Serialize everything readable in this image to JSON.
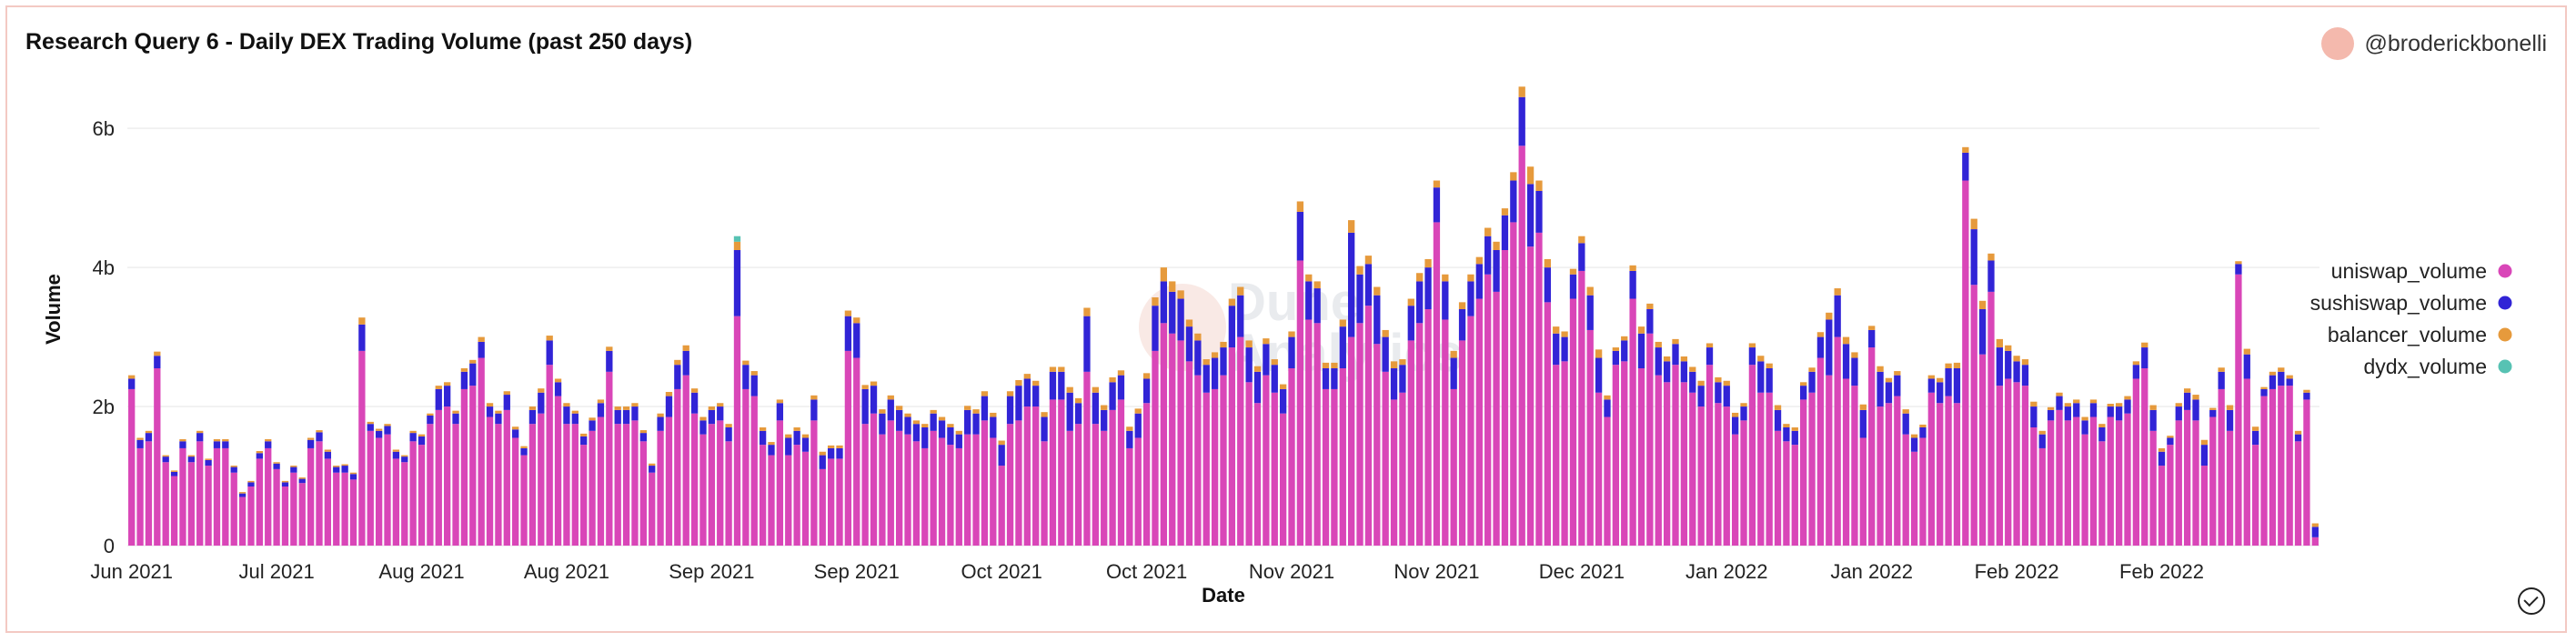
{
  "header": {
    "title": "Research Query 6 - Daily DEX Trading Volume (past 250 days)",
    "username": "@broderickbonelli"
  },
  "watermark_text": "Dune Analytics",
  "colors": {
    "uniswap": "#d946b8",
    "sushiswap": "#3124d6",
    "balancer": "#e69a3c",
    "dydx": "#57c2b3",
    "grid": "#eeeeee"
  },
  "chart_data": {
    "type": "bar",
    "stacked": true,
    "title": "Research Query 6 - Daily DEX Trading Volume (past 250 days)",
    "xlabel": "Date",
    "ylabel": "Volume",
    "ylim": [
      0,
      6800000000
    ],
    "y_ticks": [
      {
        "value": 0,
        "label": "0"
      },
      {
        "value": 2000000000,
        "label": "2b"
      },
      {
        "value": 4000000000,
        "label": "4b"
      },
      {
        "value": 6000000000,
        "label": "6b"
      }
    ],
    "x_ticks": [
      {
        "index": 0,
        "label": "Jun 2021"
      },
      {
        "index": 17,
        "label": "Jul 2021"
      },
      {
        "index": 34,
        "label": "Aug 2021"
      },
      {
        "index": 51,
        "label": "Aug 2021"
      },
      {
        "index": 68,
        "label": "Sep 2021"
      },
      {
        "index": 85,
        "label": "Sep 2021"
      },
      {
        "index": 102,
        "label": "Oct 2021"
      },
      {
        "index": 119,
        "label": "Oct 2021"
      },
      {
        "index": 136,
        "label": "Nov 2021"
      },
      {
        "index": 153,
        "label": "Nov 2021"
      },
      {
        "index": 170,
        "label": "Dec 2021"
      },
      {
        "index": 187,
        "label": "Jan 2022"
      },
      {
        "index": 204,
        "label": "Jan 2022"
      },
      {
        "index": 221,
        "label": "Feb 2022"
      },
      {
        "index": 238,
        "label": "Feb 2022"
      }
    ],
    "legend_position": "right",
    "series": [
      {
        "name": "uniswap_volume",
        "values": [
          2.25,
          1.4,
          1.5,
          2.55,
          1.2,
          1.0,
          1.4,
          1.2,
          1.5,
          1.15,
          1.4,
          1.4,
          1.05,
          0.7,
          0.85,
          1.25,
          1.4,
          1.1,
          0.85,
          1.05,
          0.9,
          1.4,
          1.5,
          1.25,
          1.05,
          1.05,
          0.95,
          2.8,
          1.65,
          1.55,
          1.6,
          1.25,
          1.2,
          1.5,
          1.45,
          1.75,
          1.95,
          2.0,
          1.75,
          2.25,
          2.3,
          2.7,
          1.85,
          1.75,
          1.95,
          1.55,
          1.3,
          1.75,
          1.9,
          2.6,
          2.15,
          1.75,
          1.75,
          1.45,
          1.65,
          1.85,
          2.5,
          1.75,
          1.75,
          1.8,
          1.5,
          1.05,
          1.65,
          1.85,
          2.25,
          2.45,
          1.9,
          1.6,
          1.75,
          1.8,
          1.5,
          3.3,
          2.25,
          2.15,
          1.45,
          1.3,
          1.8,
          1.3,
          1.45,
          1.35,
          1.8,
          1.1,
          1.25,
          1.25,
          2.8,
          2.7,
          1.75,
          1.9,
          1.6,
          1.8,
          1.65,
          1.6,
          1.5,
          1.4,
          1.65,
          1.55,
          1.45,
          1.4,
          1.6,
          1.6,
          1.8,
          1.55,
          1.15,
          1.75,
          1.8,
          2.0,
          2.0,
          1.5,
          2.1,
          2.1,
          1.65,
          1.75,
          2.5,
          1.75,
          1.65,
          1.95,
          2.1,
          1.4,
          1.55,
          2.05,
          2.8,
          3.2,
          3.05,
          2.95,
          2.65,
          2.45,
          2.2,
          2.25,
          2.45,
          2.85,
          3.0,
          2.35,
          2.05,
          2.45,
          2.2,
          1.9,
          2.55,
          4.1,
          3.25,
          3.2,
          2.25,
          2.25,
          2.55,
          3.0,
          3.2,
          3.45,
          2.9,
          2.5,
          2.1,
          2.2,
          2.95,
          3.2,
          3.4,
          4.65,
          3.25,
          2.25,
          2.95,
          3.3,
          3.55,
          3.9,
          3.65,
          4.25,
          4.65,
          5.75,
          4.3,
          4.5,
          3.5,
          2.6,
          2.65,
          3.55,
          3.95,
          3.1,
          2.2,
          1.85,
          2.6,
          2.65,
          3.55,
          2.55,
          3.05,
          2.45,
          2.35,
          2.6,
          2.35,
          2.2,
          2.0,
          2.6,
          2.05,
          2.0,
          1.6,
          1.8,
          2.6,
          2.2,
          2.2,
          1.65,
          1.5,
          1.45,
          2.1,
          2.2,
          2.7,
          2.45,
          3.0,
          2.4,
          2.3,
          1.55,
          2.85,
          2.0,
          2.05,
          2.15,
          1.6,
          1.35,
          1.55,
          2.2,
          2.05,
          2.15,
          2.05,
          5.25,
          3.75,
          2.75,
          3.65,
          2.3,
          2.4,
          2.35,
          2.3,
          1.7,
          1.4,
          1.8,
          1.95,
          1.8,
          1.85,
          1.6,
          1.85,
          1.5,
          1.85,
          1.8,
          1.9,
          2.4,
          2.55,
          1.65,
          1.15,
          1.45,
          1.8,
          1.95,
          1.8,
          1.15,
          1.85,
          2.25,
          1.65,
          3.9,
          2.4,
          1.45,
          2.15,
          2.25,
          2.3,
          2.3,
          1.5,
          2.1,
          0.12
        ]
      },
      {
        "name": "sushiswap_volume",
        "values": [
          0.15,
          0.12,
          0.12,
          0.18,
          0.08,
          0.06,
          0.1,
          0.08,
          0.12,
          0.08,
          0.1,
          0.1,
          0.08,
          0.05,
          0.06,
          0.08,
          0.1,
          0.08,
          0.06,
          0.08,
          0.06,
          0.12,
          0.13,
          0.1,
          0.08,
          0.1,
          0.08,
          0.38,
          0.1,
          0.1,
          0.12,
          0.1,
          0.08,
          0.12,
          0.12,
          0.12,
          0.3,
          0.3,
          0.15,
          0.25,
          0.32,
          0.23,
          0.15,
          0.15,
          0.22,
          0.12,
          0.1,
          0.2,
          0.3,
          0.35,
          0.2,
          0.25,
          0.15,
          0.12,
          0.15,
          0.2,
          0.3,
          0.2,
          0.2,
          0.2,
          0.12,
          0.1,
          0.2,
          0.3,
          0.35,
          0.35,
          0.3,
          0.2,
          0.2,
          0.2,
          0.2,
          0.95,
          0.35,
          0.3,
          0.2,
          0.15,
          0.25,
          0.25,
          0.2,
          0.2,
          0.3,
          0.2,
          0.15,
          0.15,
          0.5,
          0.5,
          0.5,
          0.4,
          0.3,
          0.3,
          0.3,
          0.25,
          0.25,
          0.3,
          0.25,
          0.25,
          0.25,
          0.2,
          0.35,
          0.3,
          0.35,
          0.3,
          0.3,
          0.4,
          0.5,
          0.4,
          0.3,
          0.35,
          0.4,
          0.4,
          0.55,
          0.3,
          0.8,
          0.45,
          0.3,
          0.4,
          0.35,
          0.25,
          0.35,
          0.35,
          0.65,
          0.6,
          0.6,
          0.6,
          0.5,
          0.5,
          0.4,
          0.45,
          0.4,
          0.6,
          0.6,
          0.5,
          0.45,
          0.45,
          0.4,
          0.35,
          0.45,
          0.7,
          0.55,
          0.5,
          0.3,
          0.3,
          0.6,
          1.5,
          0.7,
          0.6,
          0.7,
          0.5,
          0.45,
          0.4,
          0.5,
          0.6,
          0.6,
          0.5,
          0.55,
          0.45,
          0.45,
          0.5,
          0.5,
          0.55,
          0.6,
          0.5,
          0.6,
          0.7,
          0.9,
          0.6,
          0.5,
          0.45,
          0.35,
          0.35,
          0.4,
          0.5,
          0.5,
          0.25,
          0.2,
          0.3,
          0.4,
          0.5,
          0.35,
          0.4,
          0.3,
          0.3,
          0.3,
          0.3,
          0.3,
          0.25,
          0.3,
          0.3,
          0.25,
          0.2,
          0.25,
          0.45,
          0.35,
          0.3,
          0.2,
          0.2,
          0.2,
          0.3,
          0.3,
          0.8,
          0.6,
          0.5,
          0.4,
          0.4,
          0.25,
          0.5,
          0.3,
          0.3,
          0.3,
          0.2,
          0.15,
          0.2,
          0.3,
          0.4,
          0.5,
          0.4,
          0.8,
          0.65,
          0.45,
          0.55,
          0.4,
          0.3,
          0.3,
          0.3,
          0.2,
          0.15,
          0.2,
          0.2,
          0.2,
          0.2,
          0.2,
          0.2,
          0.15,
          0.2,
          0.2,
          0.2,
          0.3,
          0.3,
          0.2,
          0.1,
          0.2,
          0.25,
          0.3,
          0.3,
          0.1,
          0.25,
          0.3,
          0.15,
          0.35,
          0.2,
          0.1,
          0.2,
          0.2,
          0.1,
          0.1,
          0.1,
          0.15,
          0.0
        ]
      },
      {
        "name": "balancer_volume",
        "values": [
          0.05,
          0.03,
          0.03,
          0.06,
          0.02,
          0.02,
          0.03,
          0.02,
          0.03,
          0.02,
          0.03,
          0.03,
          0.02,
          0.02,
          0.02,
          0.03,
          0.03,
          0.02,
          0.02,
          0.02,
          0.02,
          0.03,
          0.03,
          0.03,
          0.02,
          0.02,
          0.02,
          0.1,
          0.03,
          0.03,
          0.03,
          0.03,
          0.02,
          0.03,
          0.03,
          0.03,
          0.05,
          0.05,
          0.04,
          0.05,
          0.05,
          0.07,
          0.05,
          0.04,
          0.05,
          0.04,
          0.03,
          0.05,
          0.06,
          0.07,
          0.05,
          0.05,
          0.04,
          0.04,
          0.04,
          0.05,
          0.06,
          0.05,
          0.05,
          0.05,
          0.04,
          0.03,
          0.05,
          0.06,
          0.07,
          0.08,
          0.06,
          0.05,
          0.05,
          0.05,
          0.05,
          0.12,
          0.06,
          0.06,
          0.05,
          0.04,
          0.05,
          0.05,
          0.05,
          0.05,
          0.06,
          0.05,
          0.04,
          0.04,
          0.08,
          0.08,
          0.06,
          0.06,
          0.06,
          0.06,
          0.06,
          0.05,
          0.05,
          0.05,
          0.05,
          0.05,
          0.05,
          0.05,
          0.06,
          0.06,
          0.07,
          0.06,
          0.06,
          0.07,
          0.08,
          0.07,
          0.07,
          0.07,
          0.07,
          0.07,
          0.08,
          0.07,
          0.12,
          0.08,
          0.07,
          0.07,
          0.07,
          0.06,
          0.07,
          0.08,
          0.12,
          0.2,
          0.15,
          0.12,
          0.1,
          0.1,
          0.08,
          0.08,
          0.08,
          0.1,
          0.12,
          0.1,
          0.08,
          0.08,
          0.08,
          0.07,
          0.08,
          0.15,
          0.1,
          0.1,
          0.08,
          0.08,
          0.1,
          0.18,
          0.12,
          0.12,
          0.12,
          0.1,
          0.1,
          0.08,
          0.1,
          0.12,
          0.12,
          0.1,
          0.1,
          0.1,
          0.1,
          0.1,
          0.1,
          0.12,
          0.12,
          0.1,
          0.12,
          0.15,
          0.25,
          0.15,
          0.12,
          0.1,
          0.08,
          0.08,
          0.1,
          0.12,
          0.12,
          0.06,
          0.05,
          0.06,
          0.08,
          0.1,
          0.08,
          0.08,
          0.07,
          0.07,
          0.07,
          0.07,
          0.07,
          0.06,
          0.07,
          0.07,
          0.06,
          0.05,
          0.06,
          0.08,
          0.07,
          0.07,
          0.05,
          0.05,
          0.05,
          0.06,
          0.07,
          0.1,
          0.1,
          0.1,
          0.08,
          0.08,
          0.06,
          0.08,
          0.06,
          0.06,
          0.06,
          0.05,
          0.04,
          0.05,
          0.06,
          0.07,
          0.08,
          0.08,
          0.15,
          0.12,
          0.1,
          0.12,
          0.08,
          0.08,
          0.08,
          0.07,
          0.05,
          0.04,
          0.05,
          0.05,
          0.05,
          0.05,
          0.05,
          0.05,
          0.04,
          0.05,
          0.05,
          0.05,
          0.07,
          0.07,
          0.05,
          0.03,
          0.05,
          0.06,
          0.07,
          0.07,
          0.03,
          0.06,
          0.07,
          0.04,
          0.08,
          0.06,
          0.03,
          0.05,
          0.06,
          0.05,
          0.05,
          0.04,
          0.05,
          0.0
        ]
      },
      {
        "name": "dydx_volume",
        "values": [
          0,
          0,
          0,
          0,
          0,
          0,
          0,
          0,
          0,
          0,
          0,
          0,
          0,
          0,
          0,
          0,
          0,
          0,
          0,
          0,
          0,
          0,
          0,
          0,
          0,
          0,
          0,
          0,
          0,
          0,
          0,
          0,
          0,
          0,
          0,
          0,
          0,
          0,
          0,
          0,
          0,
          0,
          0,
          0,
          0,
          0,
          0,
          0,
          0,
          0,
          0,
          0,
          0,
          0,
          0,
          0,
          0,
          0,
          0,
          0,
          0,
          0,
          0,
          0,
          0,
          0,
          0,
          0,
          0,
          0,
          0,
          0.08,
          0,
          0,
          0,
          0,
          0,
          0,
          0,
          0,
          0,
          0,
          0,
          0,
          0,
          0,
          0,
          0,
          0,
          0,
          0,
          0,
          0,
          0,
          0,
          0,
          0,
          0,
          0,
          0,
          0,
          0,
          0,
          0,
          0,
          0,
          0,
          0,
          0,
          0,
          0,
          0,
          0,
          0,
          0,
          0,
          0,
          0,
          0,
          0,
          0,
          0,
          0,
          0,
          0,
          0,
          0,
          0,
          0,
          0,
          0,
          0,
          0,
          0,
          0,
          0,
          0,
          0,
          0,
          0,
          0,
          0,
          0,
          0,
          0,
          0,
          0,
          0,
          0,
          0,
          0,
          0,
          0,
          0,
          0,
          0,
          0,
          0,
          0,
          0,
          0,
          0,
          0,
          0,
          0,
          0,
          0,
          0,
          0,
          0,
          0,
          0,
          0,
          0,
          0,
          0,
          0,
          0,
          0,
          0,
          0,
          0,
          0,
          0,
          0,
          0,
          0,
          0,
          0,
          0,
          0,
          0,
          0,
          0,
          0,
          0,
          0,
          0,
          0,
          0,
          0,
          0,
          0,
          0,
          0,
          0,
          0,
          0,
          0,
          0,
          0,
          0,
          0,
          0,
          0,
          0,
          0,
          0,
          0,
          0,
          0,
          0,
          0,
          0,
          0,
          0,
          0,
          0,
          0,
          0,
          0,
          0,
          0,
          0,
          0,
          0,
          0,
          0,
          0,
          0,
          0,
          0,
          0,
          0,
          0,
          0,
          0,
          0,
          0,
          0,
          0,
          0,
          0,
          0,
          0,
          0,
          0,
          0,
          0,
          0,
          0
        ]
      }
    ],
    "value_unit_note": "values expressed in billions"
  }
}
